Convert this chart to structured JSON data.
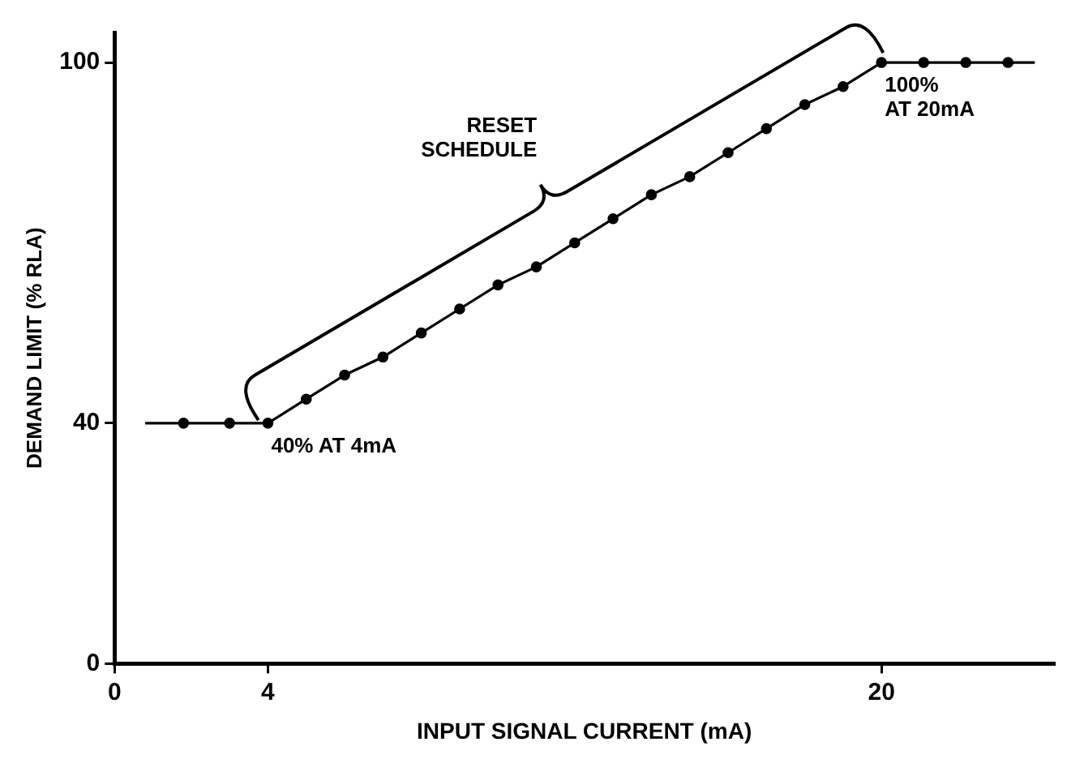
{
  "chart_data": {
    "type": "line",
    "xlabel": "INPUT SIGNAL CURRENT (mA)",
    "ylabel": "DEMAND LIMIT (% RLA)",
    "x": [
      0.8,
      1.8,
      3,
      4,
      5,
      6,
      7,
      8,
      9,
      10,
      11,
      12,
      13,
      14,
      15,
      16,
      17,
      18,
      19,
      20,
      21.1,
      22.2,
      23.3,
      24
    ],
    "series": [
      {
        "color": "#000000",
        "values": [
          40,
          40,
          40,
          40,
          44,
          48,
          51,
          55,
          59,
          63,
          66,
          70,
          74,
          78,
          81,
          85,
          89,
          93,
          96,
          100,
          100,
          100,
          100,
          100
        ]
      }
    ],
    "xlim": [
      0,
      24.5
    ],
    "xticks": [
      0,
      4,
      20
    ],
    "ylim": [
      0,
      105
    ],
    "yticks": [
      0,
      40,
      100
    ],
    "marker": "circle",
    "line_style": "solid",
    "grid": false,
    "legend": false,
    "annotations": [
      "RESET\nSCHEDULE",
      {
        "text": "40% AT 4mA",
        "x": 4,
        "y": 40
      },
      {
        "text": "100%\nAT 20mA",
        "x": 20,
        "y": 100
      }
    ]
  }
}
